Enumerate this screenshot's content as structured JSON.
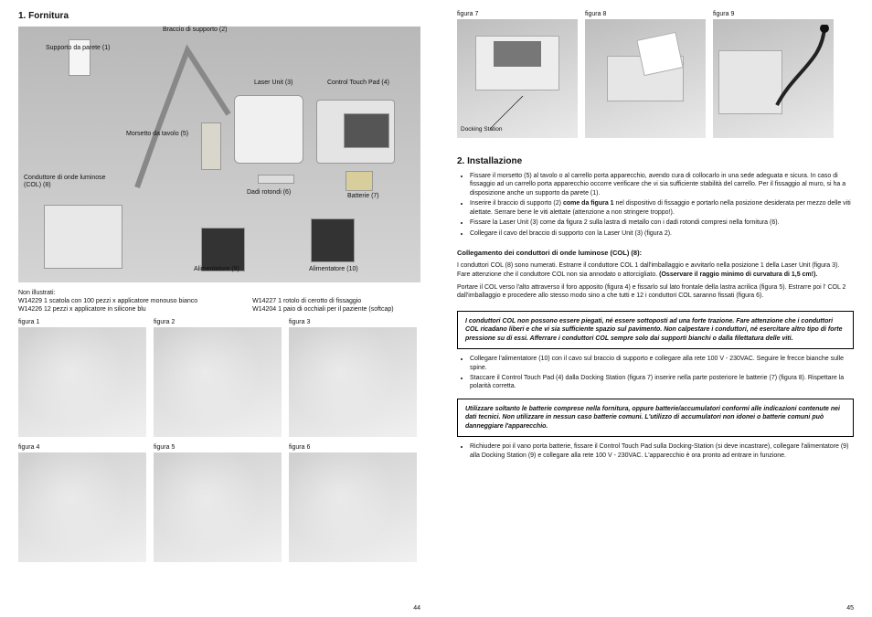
{
  "left": {
    "heading": "1.  Fornitura",
    "labels": {
      "supporto_parete": "Supporto da parete (1)",
      "braccio": "Braccio di supporto (2)",
      "laser": "Laser Unit (3)",
      "touchpad": "Control Touch Pad (4)",
      "morsetto": "Morsetto da tavolo (5)",
      "batterie": "Batterie (7)",
      "col8": "Conduttore di onde\nluminose (COL) (8)",
      "dadi": "Dadi rotondi (6)",
      "alim9": "Alimentatore (9)",
      "alim10": "Alimentatore (10)"
    },
    "not_illus_title": "Non illustrati:",
    "not_illus": {
      "l1": "W14229  1 scatola con 100 pezzi x applicatore monouso bianco",
      "l2": "W14226  12 pezzi x applicatore in silicone blu",
      "r1": "W14227  1 rotolo di cerotto di fissaggio",
      "r2": "W14204  1 paio di occhiali per il paziente (softcap)"
    },
    "figs": {
      "f1": "figura  1",
      "f2": "figura  2",
      "f3": "figura  3",
      "f4": "figura  4",
      "f5": "figura  5",
      "f6": "figura  6"
    },
    "pagenum": "44"
  },
  "right": {
    "top_figs": {
      "f7": "figura  7",
      "f8": "figura  8",
      "f9": "figura  9",
      "dock": "Docking Station"
    },
    "heading": "2.  Installazione",
    "bullets1": [
      "Fissare il morsetto (5) al tavolo o al carrello porta apparecchio, avendo cura di collocarlo in una sede adeguata e sicura.  In caso di fissaggio ad un carrello porta apparecchio occorre verificare che vi sia sufficiente stabilità del carrello. Per il fissaggio al muro, si ha a disposizione anche un supporto da parete (1).",
      "Inserire il braccio di supporto (2) <b>come da figura 1</b> nel dispositivo di fissaggio e portarlo nella posizione desiderata per mezzo delle viti alettate. Serrare bene le viti alettate (attenzione a non stringere troppo!).",
      "Fissare la Laser Unit  (3) come da figura 2 sulla lastra di metallo con i dadi rotondi compresi nella fornitura (6).",
      "Collegare il cavo del braccio di supporto con la Laser Unit (3) (figura 2)."
    ],
    "sub_h": "Collegamento dei conduttori di onde luminose (COL) (8):",
    "p1": "I conduttori COL (8) sono numerati. Estrarre il conduttore COL 1 dall'imballaggio e avvitarlo nella posizione 1 della Laser Unit (figura 3). Fare attenzione che il conduttore COL non sia annodato o attorcigliato. <b>(Osservare il raggio minimo di curvatura di 1,5 cm!).</b>",
    "p2": "Portare il COL verso l'alto attraverso il foro apposito (figura 4) e fissarlo sul lato frontale della lastra acrilica (figura 5). Estrarre poi l' COL 2  dall'imballaggio e procedere allo stesso modo sino a che tutti e 12 i conduttori COL saranno fissati (figura 6).",
    "warn1": "I conduttori COL non possono essere piegati, né essere sottoposti ad una forte trazione. Fare attenzione che i conduttori COL ricadano liberi e che vi sia sufficiente spazio sul pavimento. Non calpestare i conduttori, né esercitare altro tipo di forte pressione su di essi.\nAfferrare i conduttori COL sempre solo dai supporti bianchi o dalla filettatura delle viti.",
    "bullets2": [
      "Collegare l'alimentatore (10) con il cavo sul braccio di supporto e collegare alla rete 100 V - 230VAC. Seguire le frecce bianche sulle spine.",
      "Staccare il Control Touch Pad (4) dalla Docking Station (figura 7) inserire nella parte posteriore le batterie (7) (figura 8). Rispettare la polarità corretta."
    ],
    "warn2": "Utilizzare soltanto le batterie comprese nella fornitura, oppure batterie/accumulatori conformi alle indicazioni contenute nei dati tecnici. Non utilizzare in nessun caso batterie comuni.\nL'utilizzo di accumulatori non idonei o batterie comuni può danneggiare l'apparecchio.",
    "bullets3": [
      "Richiudere poi il vano porta batterie, fissare il Control Touch Pad sulla Docking-Station (si deve incastrare), collegare l'alimentatore (9) alla Docking Station (9) e collegare alla rete 100 V - 230VAC. L'apparecchio è ora pronto ad entrare in funzione."
    ],
    "pagenum": "45"
  },
  "colors": {
    "bg": "#ffffff",
    "photo_bg": "#c6c6c6",
    "text": "#111111"
  }
}
